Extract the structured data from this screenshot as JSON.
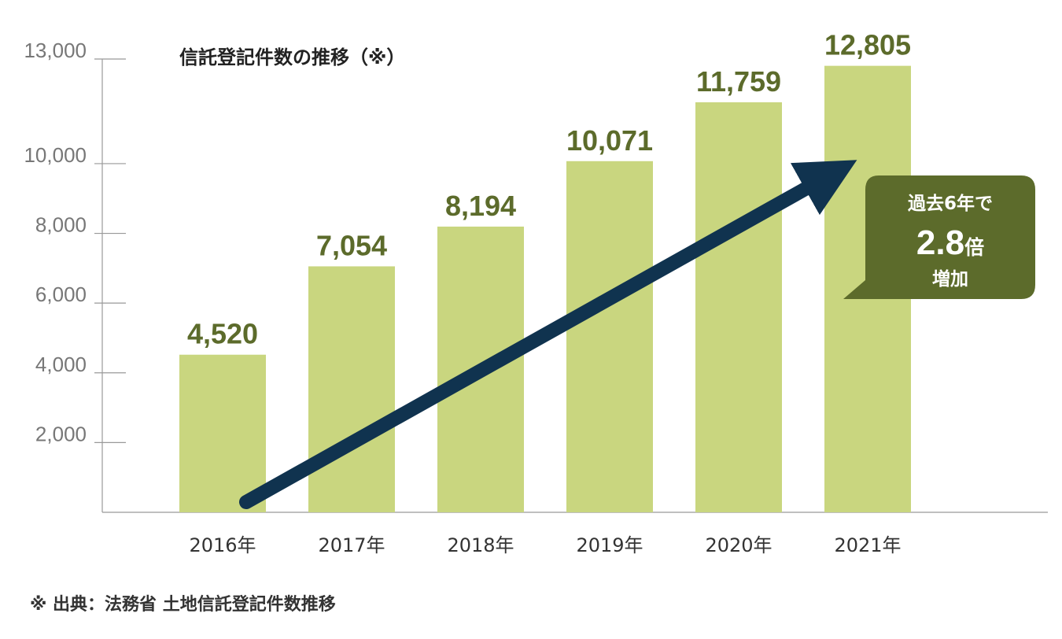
{
  "chart_data": {
    "type": "bar",
    "title": "信託登記件数の推移（※）",
    "categories": [
      "2016年",
      "2017年",
      "2018年",
      "2019年",
      "2020年",
      "2021年"
    ],
    "values": [
      4520,
      7054,
      8194,
      10071,
      11759,
      12805
    ],
    "value_labels": [
      "4,520",
      "7,054",
      "8,194",
      "10,071",
      "11,759",
      "12,805"
    ],
    "yticks": [
      "2,000",
      "4,000",
      "6,000",
      "8,000",
      "10,000",
      "13,000"
    ],
    "ylim": [
      0,
      13000
    ],
    "xlabel": "",
    "ylabel": "",
    "grid": false,
    "legend": "none",
    "bar_color": "#c9d67f",
    "label_color": "#5c6b2b",
    "arrow_color": "#10334f",
    "callout": {
      "line1": "過去6年で",
      "big": "2.8",
      "big_suffix": "倍",
      "line3": "増加",
      "color": "#5c6b2b"
    }
  },
  "source_note": "※ 出典：法務省 土地信託登記件数推移"
}
